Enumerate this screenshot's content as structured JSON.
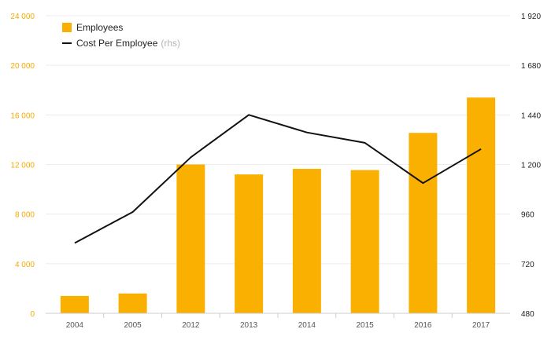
{
  "chart_data": {
    "type": "bar",
    "categories": [
      "2004",
      "2005",
      "2012",
      "2013",
      "2014",
      "2015",
      "2016",
      "2017"
    ],
    "series": [
      {
        "name": "Employees",
        "type": "bar",
        "axis": "left",
        "color": "#f9b000",
        "values": [
          1400,
          1600,
          12000,
          11200,
          11650,
          11550,
          14550,
          17400
        ]
      },
      {
        "name": "Cost Per Employee",
        "name_suffix": "(rhs)",
        "type": "line",
        "axis": "right",
        "color": "#111111",
        "values": [
          820,
          970,
          1235,
          1440,
          1355,
          1305,
          1110,
          1275
        ]
      }
    ],
    "y_left": {
      "ticks": [
        "0",
        "4 000",
        "8 000",
        "12 000",
        "16 000",
        "20 000",
        "24 000"
      ],
      "min": 0,
      "max": 24000,
      "color": "#f4aa00"
    },
    "y_right": {
      "ticks": [
        "480",
        "720",
        "960",
        "1 200",
        "1 440",
        "1 680",
        "1 920"
      ],
      "min": 480,
      "max": 1920,
      "color": "#222222"
    },
    "grid": true,
    "legend": "top-left"
  }
}
